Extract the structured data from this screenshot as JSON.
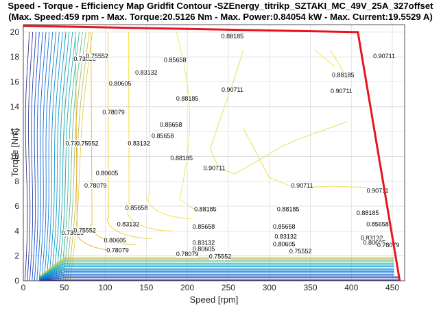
{
  "chart_data": {
    "type": "contour",
    "title": "Speed - Torque - Efficiency Map Gridfit Contour -SZEnergy_titrikp_SZTAKI_MC_49V_25A_327offset",
    "subtitle": "(Max. Speed:459 rpm - Max. Torque:20.5126 Nm - Max. Power:0.84054 kW - Max. Current:19.5529 A)",
    "xlabel": "Speed [rpm]",
    "ylabel": "Torque [Nm]",
    "xlim": [
      0,
      465
    ],
    "ylim": [
      0,
      20.6
    ],
    "xticks": [
      0,
      50,
      100,
      150,
      200,
      250,
      300,
      350,
      400,
      450
    ],
    "yticks": [
      0,
      2,
      4,
      6,
      8,
      10,
      12,
      14,
      16,
      18,
      20
    ],
    "grid": true,
    "contour_levels": [
      "0.73026",
      "0.75552",
      "0.78079",
      "0.80605",
      "0.83132",
      "0.85658",
      "0.88185",
      "0.90711"
    ],
    "contour_labels": [
      {
        "text": "0.88185",
        "x": 255,
        "y": 19.6
      },
      {
        "text": "0.90711",
        "x": 440,
        "y": 18.0
      },
      {
        "text": "0.88185",
        "x": 390,
        "y": 16.5
      },
      {
        "text": "0.90711",
        "x": 388,
        "y": 15.2
      },
      {
        "text": "0.90711",
        "x": 255,
        "y": 15.3
      },
      {
        "text": "0.85658",
        "x": 185,
        "y": 17.7
      },
      {
        "text": "0.83132",
        "x": 150,
        "y": 16.7
      },
      {
        "text": "0.88185",
        "x": 200,
        "y": 14.6
      },
      {
        "text": "0.85658",
        "x": 180,
        "y": 12.5
      },
      {
        "text": "0.80605",
        "x": 118,
        "y": 15.8
      },
      {
        "text": "0.78079",
        "x": 110,
        "y": 13.5
      },
      {
        "text": "0.85658",
        "x": 170,
        "y": 11.6
      },
      {
        "text": "0.83132",
        "x": 141,
        "y": 11.0
      },
      {
        "text": "0.88185",
        "x": 193,
        "y": 9.8
      },
      {
        "text": "0.90711",
        "x": 233,
        "y": 9.0
      },
      {
        "text": "0.90711",
        "x": 340,
        "y": 7.6
      },
      {
        "text": "0.90711",
        "x": 432,
        "y": 7.2
      },
      {
        "text": "0.80605",
        "x": 102,
        "y": 8.6
      },
      {
        "text": "0.78079",
        "x": 88,
        "y": 7.6
      },
      {
        "text": "0.85658",
        "x": 138,
        "y": 5.8
      },
      {
        "text": "0.83132",
        "x": 128,
        "y": 4.5
      },
      {
        "text": "0.88185",
        "x": 222,
        "y": 5.7
      },
      {
        "text": "0.88185",
        "x": 323,
        "y": 5.7
      },
      {
        "text": "0.88185",
        "x": 420,
        "y": 5.4
      },
      {
        "text": "0.85658",
        "x": 220,
        "y": 4.3
      },
      {
        "text": "0.85658",
        "x": 318,
        "y": 4.3
      },
      {
        "text": "0.85658",
        "x": 432,
        "y": 4.5
      },
      {
        "text": "0.80605",
        "x": 112,
        "y": 3.2
      },
      {
        "text": "0.78079",
        "x": 115,
        "y": 2.4
      },
      {
        "text": "0.83132",
        "x": 220,
        "y": 3.0
      },
      {
        "text": "0.83132",
        "x": 320,
        "y": 3.5
      },
      {
        "text": "0.83132",
        "x": 425,
        "y": 3.4
      },
      {
        "text": "0.80605",
        "x": 220,
        "y": 2.5
      },
      {
        "text": "0.80605",
        "x": 318,
        "y": 2.9
      },
      {
        "text": "0.80605",
        "x": 428,
        "y": 3.0
      },
      {
        "text": "0.75552",
        "x": 338,
        "y": 2.3
      },
      {
        "text": "0.78079",
        "x": 445,
        "y": 2.8
      },
      {
        "text": "0.78079",
        "x": 200,
        "y": 2.1
      },
      {
        "text": "0.75552",
        "x": 240,
        "y": 1.9
      },
      {
        "text": "0.73026",
        "x": 75,
        "y": 17.8
      },
      {
        "text": "0.75552",
        "x": 90,
        "y": 18.0
      },
      {
        "text": "0.73026",
        "x": 65,
        "y": 11.0
      },
      {
        "text": "0.75552",
        "x": 78,
        "y": 11.0
      },
      {
        "text": "0.73026",
        "x": 60,
        "y": 3.8
      },
      {
        "text": "0.75552",
        "x": 75,
        "y": 4.0
      }
    ],
    "envelope": {
      "x": [
        0,
        408,
        459
      ],
      "y": [
        20.5,
        20.0,
        0
      ],
      "color": "#e8141c"
    },
    "colormap": "parula"
  }
}
